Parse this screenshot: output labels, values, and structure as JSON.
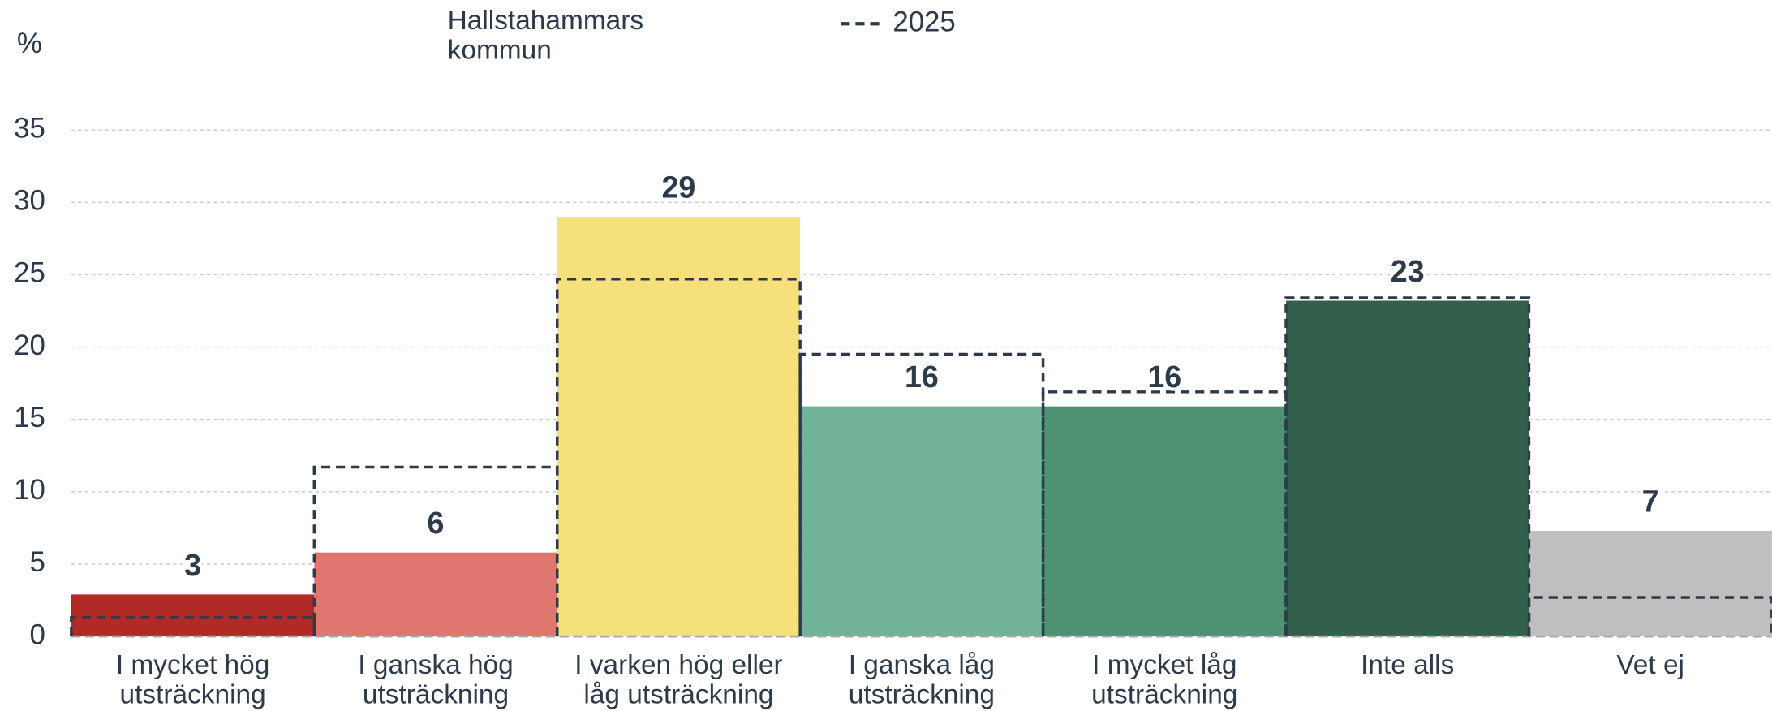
{
  "chart_data": {
    "type": "bar",
    "y_label": "%",
    "categories": [
      "I mycket hög utsträckning",
      "I ganska hög utsträckning",
      "I varken hög eller låg utsträckning",
      "I ganska låg utsträckning",
      "I mycket låg utsträckning",
      "Inte alls",
      "Vet ej"
    ],
    "series": [
      {
        "name": "Hallstahammars kommun",
        "colors": [
          "#b22a25",
          "#e07670",
          "#f5e07c",
          "#72b299",
          "#4e9173",
          "#33604c",
          "#bfbfbf"
        ],
        "values": [
          2.9,
          5.8,
          29,
          15.9,
          15.9,
          23.2,
          7.3
        ],
        "value_labels": [
          "3",
          "6",
          "29",
          "16",
          "16",
          "23",
          "7"
        ]
      },
      {
        "name": "2025",
        "color": "#2d3a4a",
        "style": "dashed",
        "values": [
          1.3,
          11.7,
          24.7,
          19.5,
          16.9,
          23.4,
          2.7
        ]
      }
    ],
    "ylim": [
      0,
      35
    ],
    "yticks": [
      0,
      5,
      10,
      15,
      20,
      25,
      30,
      35
    ],
    "grid": true
  }
}
